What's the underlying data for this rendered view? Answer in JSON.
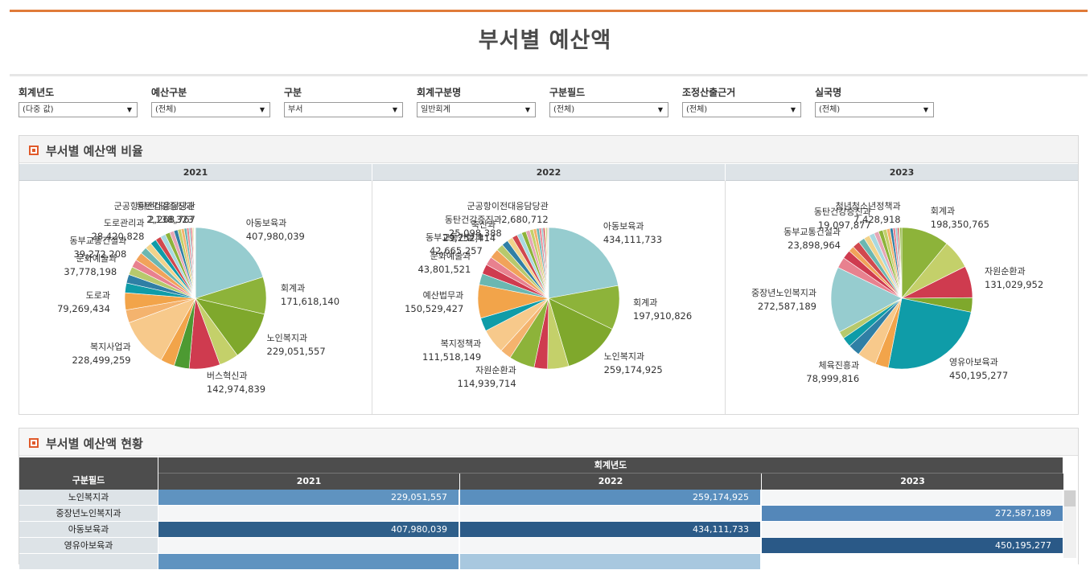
{
  "page": {
    "title": "부서별 예산액"
  },
  "filters": [
    {
      "label": "회계년도",
      "value": "(다중 값)"
    },
    {
      "label": "예산구분",
      "value": "(전체)"
    },
    {
      "label": "구분",
      "value": "부서"
    },
    {
      "label": "회계구분명",
      "value": "일반회계"
    },
    {
      "label": "구분필드",
      "value": "(전체)"
    },
    {
      "label": "조정산출근거",
      "value": "(전체)"
    },
    {
      "label": "실국명",
      "value": "(전체)"
    }
  ],
  "pie_section": {
    "title": "부서별 예산액 비율"
  },
  "table_section": {
    "title": "부서별 예산액 현황",
    "row_header": "구분필드",
    "col_group": "회계년도",
    "years": [
      "2021",
      "2022",
      "2023"
    ],
    "rows": [
      {
        "name": "노인복지과",
        "values": [
          "229,051,557",
          "259,174,925",
          ""
        ]
      },
      {
        "name": "중장년노인복지과",
        "values": [
          "",
          "",
          "272,587,189"
        ]
      },
      {
        "name": "아동보육과",
        "values": [
          "407,980,039",
          "434,111,733",
          ""
        ]
      },
      {
        "name": "영유아보육과",
        "values": [
          "",
          "",
          "450,195,277"
        ]
      }
    ]
  },
  "colors": {
    "accent": "#e07b39",
    "palette": [
      "#96cccf",
      "#8db33a",
      "#8db33a",
      "#c4d06a",
      "#cf3b4f",
      "#4d9a32",
      "#f2a44a",
      "#f7c98b",
      "#f4b36e",
      "#0f9ca8",
      "#2f7fa5",
      "#e6a6b6",
      "#b7c96c",
      "#e8818f",
      "#6bb7b1",
      "#f1d38b",
      "#d1484e",
      "#a8d9e0"
    ],
    "cell_dark": "#2f5f8a",
    "cell_mid": "#5f93c0",
    "cell_light": "#a8c8df"
  },
  "chart_data": [
    {
      "type": "pie",
      "title": "2021",
      "slices": [
        {
          "label": "아동보육과",
          "value": 407980039,
          "text": "407,980,039",
          "color": "#96cccf"
        },
        {
          "label": "회계과",
          "value": 171618140,
          "text": "171,618,140",
          "color": "#8db33a"
        },
        {
          "label": "노인복지과",
          "value": 229051557,
          "text": "229,051,557",
          "color": "#7fa82c"
        },
        {
          "label": "",
          "value": 90000000,
          "text": "",
          "color": "#c4d06a"
        },
        {
          "label": "버스혁신과",
          "value": 142974839,
          "text": "142,974,839",
          "color": "#cf3b4f"
        },
        {
          "label": "",
          "value": 70000000,
          "text": "",
          "color": "#4d9a32"
        },
        {
          "label": "",
          "value": 65000000,
          "text": "",
          "color": "#f2a44a"
        },
        {
          "label": "복지사업과",
          "value": 228499259,
          "text": "228,499,259",
          "color": "#f7c98b"
        },
        {
          "label": "",
          "value": 60000000,
          "text": "",
          "color": "#f4b36e"
        },
        {
          "label": "도로과",
          "value": 79269434,
          "text": "79,269,434",
          "color": "#f2a44a"
        },
        {
          "label": "",
          "value": 45000000,
          "text": "",
          "color": "#0f9ca8"
        },
        {
          "label": "",
          "value": 40000000,
          "text": "",
          "color": "#2f7fa5"
        },
        {
          "label": "문화예술과",
          "value": 37778198,
          "text": "37,778,198",
          "color": "#b7c96c"
        },
        {
          "label": "",
          "value": 36000000,
          "text": "",
          "color": "#e8818f"
        },
        {
          "label": "동부교통건설과",
          "value": 39272208,
          "text": "39,272,208",
          "color": "#f1a35a"
        },
        {
          "label": "",
          "value": 32000000,
          "text": "",
          "color": "#6bb7b1"
        },
        {
          "label": "",
          "value": 30000000,
          "text": "",
          "color": "#f1d38b"
        },
        {
          "label": "도로관리과",
          "value": 28420828,
          "text": "28,420,828",
          "color": "#0f9ca8"
        },
        {
          "label": "",
          "value": 26000000,
          "text": "",
          "color": "#d1484e"
        },
        {
          "label": "",
          "value": 24000000,
          "text": "",
          "color": "#a8d9e0"
        },
        {
          "label": "",
          "value": 22000000,
          "text": "",
          "color": "#8db33a"
        },
        {
          "label": "",
          "value": 20000000,
          "text": "",
          "color": "#e6a6b6"
        },
        {
          "label": "",
          "value": 18000000,
          "text": "",
          "color": "#2f7fa5"
        },
        {
          "label": "",
          "value": 16000000,
          "text": "",
          "color": "#c4d06a"
        },
        {
          "label": "",
          "value": 14000000,
          "text": "",
          "color": "#f4b36e"
        },
        {
          "label": "",
          "value": 12000000,
          "text": "",
          "color": "#6bb7b1"
        },
        {
          "label": "",
          "value": 10000000,
          "text": "",
          "color": "#e8818f"
        },
        {
          "label": "",
          "value": 8000000,
          "text": "",
          "color": "#96cccf"
        },
        {
          "label": "",
          "value": 6000000,
          "text": "",
          "color": "#cf3b4f"
        },
        {
          "label": "",
          "value": 5000000,
          "text": "",
          "color": "#f1d38b"
        },
        {
          "label": "",
          "value": 4000000,
          "text": "",
          "color": "#b7c96c"
        },
        {
          "label": "동탄건강증진과",
          "value": 2138323,
          "text": "2,138,323",
          "color": "#e6a6b6"
        },
        {
          "label": "",
          "value": 3000000,
          "text": "",
          "color": "#a8d9e0"
        },
        {
          "label": "군공항이전대응담당관",
          "value": 2268767,
          "text": "2,268,767",
          "color": "#f2a44a"
        }
      ]
    },
    {
      "type": "pie",
      "title": "2022",
      "slices": [
        {
          "label": "아동보육과",
          "value": 434111733,
          "text": "434,111,733",
          "color": "#96cccf"
        },
        {
          "label": "회계과",
          "value": 197910826,
          "text": "197,910,826",
          "color": "#8db33a"
        },
        {
          "label": "노인복지과",
          "value": 259174925,
          "text": "259,174,925",
          "color": "#7fa82c"
        },
        {
          "label": "",
          "value": 95000000,
          "text": "",
          "color": "#c4d06a"
        },
        {
          "label": "",
          "value": 60000000,
          "text": "",
          "color": "#cf3b4f"
        },
        {
          "label": "자원순환과",
          "value": 114939714,
          "text": "114,939,714",
          "color": "#8db33a"
        },
        {
          "label": "",
          "value": 50000000,
          "text": "",
          "color": "#f4b36e"
        },
        {
          "label": "복지정책과",
          "value": 111518149,
          "text": "111,518,149",
          "color": "#f7c98b"
        },
        {
          "label": "",
          "value": 60000000,
          "text": "",
          "color": "#0f9ca8"
        },
        {
          "label": "예산법무과",
          "value": 150529427,
          "text": "150,529,427",
          "color": "#f2a44a"
        },
        {
          "label": "",
          "value": 50000000,
          "text": "",
          "color": "#6bb7b1"
        },
        {
          "label": "문화예술과",
          "value": 43801521,
          "text": "43,801,521",
          "color": "#cf3b4f"
        },
        {
          "label": "",
          "value": 38000000,
          "text": "",
          "color": "#e8818f"
        },
        {
          "label": "동부교통건설과",
          "value": 42665257,
          "text": "42,665,257",
          "color": "#f1a35a"
        },
        {
          "label": "",
          "value": 32000000,
          "text": "",
          "color": "#b7c96c"
        },
        {
          "label": "축산과",
          "value": 29252414,
          "text": "29,252,414",
          "color": "#2f7fa5"
        },
        {
          "label": "동탄건강증진과",
          "value": 25098388,
          "text": "25,098,388",
          "color": "#f1d38b"
        },
        {
          "label": "",
          "value": 24000000,
          "text": "",
          "color": "#d1484e"
        },
        {
          "label": "",
          "value": 22000000,
          "text": "",
          "color": "#a8d9e0"
        },
        {
          "label": "",
          "value": 20000000,
          "text": "",
          "color": "#8db33a"
        },
        {
          "label": "",
          "value": 18000000,
          "text": "",
          "color": "#e6a6b6"
        },
        {
          "label": "",
          "value": 16000000,
          "text": "",
          "color": "#c4d06a"
        },
        {
          "label": "",
          "value": 14000000,
          "text": "",
          "color": "#f4b36e"
        },
        {
          "label": "",
          "value": 12000000,
          "text": "",
          "color": "#6bb7b1"
        },
        {
          "label": "",
          "value": 10000000,
          "text": "",
          "color": "#e8818f"
        },
        {
          "label": "",
          "value": 8000000,
          "text": "",
          "color": "#96cccf"
        },
        {
          "label": "",
          "value": 7000000,
          "text": "",
          "color": "#cf3b4f"
        },
        {
          "label": "",
          "value": 6000000,
          "text": "",
          "color": "#f1d38b"
        },
        {
          "label": "",
          "value": 5000000,
          "text": "",
          "color": "#b7c96c"
        },
        {
          "label": "",
          "value": 4000000,
          "text": "",
          "color": "#e6a6b6"
        },
        {
          "label": "군공항이전대응담당관",
          "value": 2680712,
          "text": "2,680,712",
          "color": "#f2a44a"
        }
      ]
    },
    {
      "type": "pie",
      "title": "2023",
      "slices": [
        {
          "label": "회계과",
          "value": 198350765,
          "text": "198,350,765",
          "color": "#8db33a"
        },
        {
          "label": "",
          "value": 120000000,
          "text": "",
          "color": "#c4d06a"
        },
        {
          "label": "자원순환과",
          "value": 131029952,
          "text": "131,029,952",
          "color": "#cf3b4f"
        },
        {
          "label": "",
          "value": 60000000,
          "text": "",
          "color": "#7fa82c"
        },
        {
          "label": "영유아보육과",
          "value": 450195277,
          "text": "450,195,277",
          "color": "#0f9ca8"
        },
        {
          "label": "",
          "value": 55000000,
          "text": "",
          "color": "#f2a44a"
        },
        {
          "label": "체육진흥과",
          "value": 78999816,
          "text": "78,999,816",
          "color": "#f7c98b"
        },
        {
          "label": "",
          "value": 50000000,
          "text": "",
          "color": "#2f7fa5"
        },
        {
          "label": "",
          "value": 40000000,
          "text": "",
          "color": "#0f9ca8"
        },
        {
          "label": "",
          "value": 30000000,
          "text": "",
          "color": "#b7c96c"
        },
        {
          "label": "중장년노인복지과",
          "value": 272587189,
          "text": "272,587,189",
          "color": "#96cccf"
        },
        {
          "label": "",
          "value": 45000000,
          "text": "",
          "color": "#e8818f"
        },
        {
          "label": "",
          "value": 36000000,
          "text": "",
          "color": "#cf3b4f"
        },
        {
          "label": "동부교통건설과",
          "value": 23898964,
          "text": "23,898,964",
          "color": "#f1a35a"
        },
        {
          "label": "",
          "value": 30000000,
          "text": "",
          "color": "#d1484e"
        },
        {
          "label": "",
          "value": 26000000,
          "text": "",
          "color": "#6bb7b1"
        },
        {
          "label": "",
          "value": 24000000,
          "text": "",
          "color": "#f1d38b"
        },
        {
          "label": "",
          "value": 22000000,
          "text": "",
          "color": "#a8d9e0"
        },
        {
          "label": "동탄건강증진과",
          "value": 19097877,
          "text": "19,097,877",
          "color": "#e6a6b6"
        },
        {
          "label": "",
          "value": 18000000,
          "text": "",
          "color": "#8db33a"
        },
        {
          "label": "",
          "value": 16000000,
          "text": "",
          "color": "#c4d06a"
        },
        {
          "label": "",
          "value": 14000000,
          "text": "",
          "color": "#f4b36e"
        },
        {
          "label": "",
          "value": 12000000,
          "text": "",
          "color": "#2f7fa5"
        },
        {
          "label": "",
          "value": 10000000,
          "text": "",
          "color": "#e8818f"
        },
        {
          "label": "",
          "value": 8000000,
          "text": "",
          "color": "#96cccf"
        },
        {
          "label": "",
          "value": 6000000,
          "text": "",
          "color": "#cf3b4f"
        },
        {
          "label": "",
          "value": 5000000,
          "text": "",
          "color": "#b7c96c"
        },
        {
          "label": "청년청소년정책과",
          "value": 7428918,
          "text": "7,428,918",
          "color": "#8db33a"
        }
      ]
    }
  ]
}
